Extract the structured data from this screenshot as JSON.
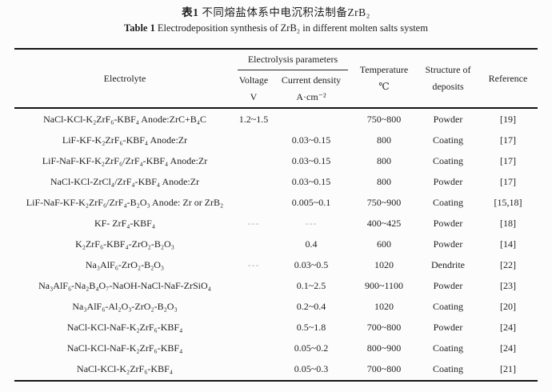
{
  "title": {
    "zh_label": "表1",
    "zh_text": "不同熔盐体系中电沉积法制备ZrB₂",
    "en_label": "Table 1",
    "en_text": "Electrodeposition synthesis of ZrB₂ in different molten salts system"
  },
  "table": {
    "header": {
      "electrolyte": "Electrolyte",
      "params_group": "Electrolysis parameters",
      "voltage_line1": "Voltage",
      "voltage_line2": "V",
      "current_line1": "Current density",
      "current_line2": "A·cm⁻²",
      "temperature_line1": "Temperature",
      "temperature_line2": "℃",
      "structure_line1": "Structure of",
      "structure_line2": "deposits",
      "reference": "Reference"
    },
    "rows": [
      {
        "electrolyte": "NaCl-KCl-K₂ZrF₆-KBF₄ Anode:ZrC+B₄C",
        "voltage": "1.2~1.5",
        "current_density": "",
        "temperature": "750~800",
        "structure": "Powder",
        "reference": "[19]"
      },
      {
        "electrolyte": "LiF-KF-K₂ZrF₆-KBF₄ Anode:Zr",
        "voltage": "",
        "current_density": "0.03~0.15",
        "temperature": "800",
        "structure": "Coating",
        "reference": "[17]"
      },
      {
        "electrolyte": "LiF-NaF-KF-K₂ZrF₆/ZrF₄-KBF₄ Anode:Zr",
        "voltage": "",
        "current_density": "0.03~0.15",
        "temperature": "800",
        "structure": "Coating",
        "reference": "[17]"
      },
      {
        "electrolyte": "NaCl-KCl-ZrCl₄/ZrF₄-KBF₄ Anode:Zr",
        "voltage": "",
        "current_density": "0.03~0.15",
        "temperature": "800",
        "structure": "Powder",
        "reference": "[17]"
      },
      {
        "electrolyte": "LiF-NaF-KF-K₂ZrF₆/ZrF₄-B₂O₃ Anode: Zr or ZrB₂",
        "voltage": "",
        "current_density": "0.005~0.1",
        "temperature": "750~900",
        "structure": "Coating",
        "reference": "[15,18]"
      },
      {
        "electrolyte": "KF- ZrF₄-KBF₄",
        "voltage": "---",
        "current_density": "---",
        "temperature": "400~425",
        "structure": "Powder",
        "reference": "[18]"
      },
      {
        "electrolyte": "K₂ZrF₆-KBF₄-ZrO₂-B₂O₃",
        "voltage": "",
        "current_density": "0.4",
        "temperature": "600",
        "structure": "Powder",
        "reference": "[14]"
      },
      {
        "electrolyte": "Na₃AlF₆-ZrO₂-B₂O₃",
        "voltage": "---",
        "current_density": "0.03~0.5",
        "temperature": "1020",
        "structure": "Dendrite",
        "reference": "[22]"
      },
      {
        "electrolyte": "Na₃AlF₆-Na₂B₄O₇-NaOH-NaCl-NaF-ZrSiO₄",
        "voltage": "",
        "current_density": "0.1~2.5",
        "temperature": "900~1100",
        "structure": "Powder",
        "reference": "[23]"
      },
      {
        "electrolyte": "Na₃AlF₆-Al₂O₃-ZrO₂-B₂O₃",
        "voltage": "",
        "current_density": "0.2~0.4",
        "temperature": "1020",
        "structure": "Coating",
        "reference": "[20]"
      },
      {
        "electrolyte": "NaCl-KCl-NaF-K₂ZrF₆-KBF₄",
        "voltage": "",
        "current_density": "0.5~1.8",
        "temperature": "700~800",
        "structure": "Powder",
        "reference": "[24]"
      },
      {
        "electrolyte": "NaCl-KCl-NaF-K₂ZrF₆-KBF₄",
        "voltage": "",
        "current_density": "0.05~0.2",
        "temperature": "800~900",
        "structure": "Coating",
        "reference": "[24]"
      },
      {
        "electrolyte": "NaCl-KCl-K₂ZrF₆-KBF₄",
        "voltage": "",
        "current_density": "0.05~0.3",
        "temperature": "700~800",
        "structure": "Coating",
        "reference": "[21]"
      }
    ]
  },
  "colors": {
    "background": "#fcfcfc",
    "text": "#1e1e1e",
    "rule": "#151515",
    "dash": "#b5b5ba"
  }
}
